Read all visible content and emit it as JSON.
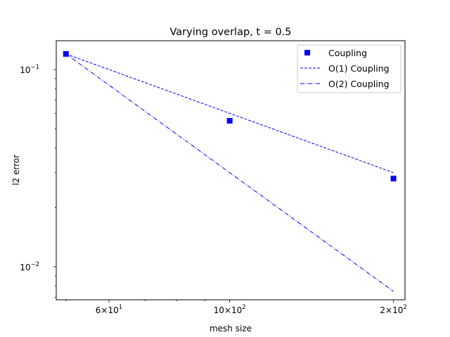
{
  "chart_data": {
    "type": "line",
    "title": "Varying overlap, t = 0.5",
    "xlabel": "mesh size",
    "ylabel": "l2 error",
    "xscale": "log",
    "yscale": "log",
    "xlim": [
      48,
      210
    ],
    "ylim": [
      0.0068,
      0.14
    ],
    "xticks": [
      {
        "value": 60,
        "base": "6",
        "exp": "1"
      },
      {
        "value": 100,
        "base": "10",
        "exp": "2"
      },
      {
        "value": 200,
        "base": "2",
        "exp": "2"
      }
    ],
    "yticks": [
      {
        "value": 0.01,
        "base": "10",
        "exp": "−2"
      },
      {
        "value": 0.1,
        "base": "10",
        "exp": "−1"
      }
    ],
    "grid": false,
    "legend_position": "top-right",
    "color": "#0000ff",
    "series": [
      {
        "name": "Coupling",
        "style": "square-markers",
        "x": [
          50,
          100,
          200
        ],
        "y": [
          0.12,
          0.055,
          0.028
        ]
      },
      {
        "name": "O(1) Coupling",
        "style": "dashed",
        "x": [
          50,
          200
        ],
        "y": [
          0.12,
          0.03
        ]
      },
      {
        "name": "O(2) Coupling",
        "style": "dash-dot",
        "x": [
          50,
          200
        ],
        "y": [
          0.12,
          0.0075
        ]
      }
    ]
  }
}
